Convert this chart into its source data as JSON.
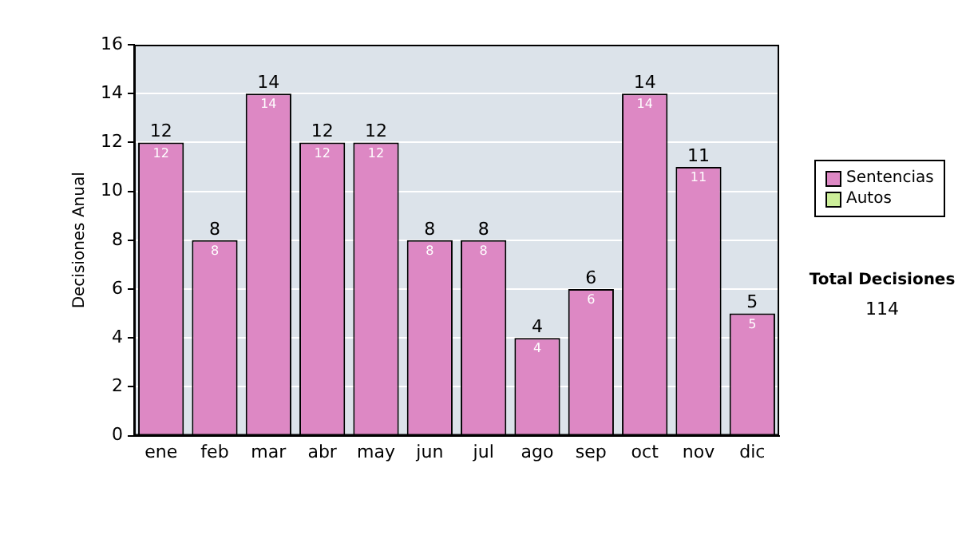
{
  "chart_data": {
    "type": "bar",
    "ylabel": "Decisiones Anual",
    "categories": [
      "ene",
      "feb",
      "mar",
      "abr",
      "may",
      "jun",
      "jul",
      "ago",
      "sep",
      "oct",
      "nov",
      "dic"
    ],
    "series": [
      {
        "name": "Sentencias",
        "color": "#dd88c4",
        "values": [
          12,
          8,
          14,
          12,
          12,
          8,
          8,
          4,
          6,
          14,
          11,
          5
        ],
        "value_labels": [
          "12",
          "8",
          "14",
          "12",
          "12",
          "8",
          "8",
          "4",
          "6",
          "14",
          "11",
          "5"
        ]
      },
      {
        "name": "Autos",
        "color": "#ccee99",
        "values": [
          0,
          0,
          0,
          0,
          0,
          0,
          0,
          0,
          0,
          0,
          0,
          0
        ]
      }
    ],
    "stacked": true,
    "ylim": [
      0,
      16
    ],
    "yticks": [
      0,
      2,
      4,
      6,
      8,
      10,
      12,
      14,
      16
    ],
    "grid": "y",
    "legend": "right",
    "totals": [
      "12",
      "8",
      "14",
      "12",
      "12",
      "8",
      "8",
      "4",
      "6",
      "14",
      "11",
      "5"
    ],
    "annotations": [
      "Total Decisiones",
      "114"
    ]
  }
}
